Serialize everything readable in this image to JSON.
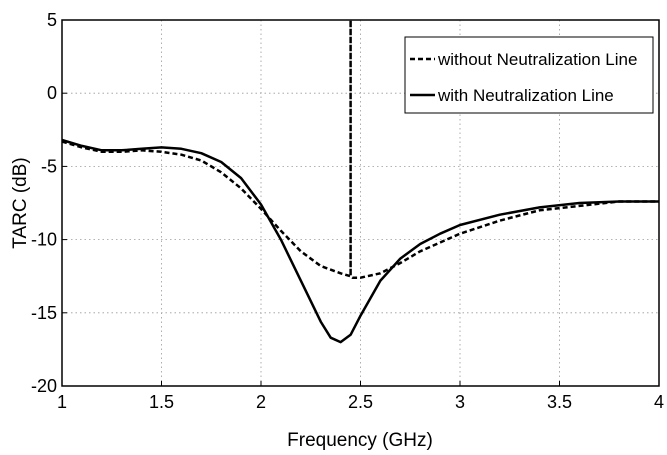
{
  "chart_data": {
    "type": "line",
    "title": "",
    "xlabel": "Frequency (GHz)",
    "ylabel": "TARC (dB)",
    "xlim": [
      1,
      4
    ],
    "ylim": [
      -20,
      5
    ],
    "xticks": [
      1,
      1.5,
      2,
      2.5,
      3,
      3.5,
      4
    ],
    "xtick_labels": [
      "1",
      "1.5",
      "2",
      "2.5",
      "3",
      "3.5",
      "4"
    ],
    "yticks": [
      -20,
      -15,
      -10,
      -5,
      0,
      5
    ],
    "ytick_labels": [
      "-20",
      "-15",
      "-10",
      "-5",
      "0",
      "5"
    ],
    "grid": true,
    "legend_position": "top-right",
    "series": [
      {
        "name": "without Neutralization Line",
        "style": "dashed",
        "color": "#000000",
        "x": [
          1.0,
          1.1,
          1.2,
          1.3,
          1.4,
          1.5,
          1.6,
          1.7,
          1.8,
          1.9,
          2.0,
          2.1,
          2.2,
          2.3,
          2.4,
          2.45,
          2.45,
          2.45,
          2.46,
          2.5,
          2.6,
          2.7,
          2.8,
          2.9,
          3.0,
          3.2,
          3.4,
          3.6,
          3.8,
          4.0
        ],
        "y": [
          -3.3,
          -3.7,
          -4.0,
          -4.0,
          -3.9,
          -4.0,
          -4.2,
          -4.6,
          -5.4,
          -6.5,
          -7.9,
          -9.4,
          -10.8,
          -11.8,
          -12.3,
          -12.5,
          5,
          -12.5,
          -12.6,
          -12.6,
          -12.3,
          -11.6,
          -10.8,
          -10.2,
          -9.6,
          -8.7,
          -8.0,
          -7.7,
          -7.4,
          -7.4
        ]
      },
      {
        "name": "with Neutralization Line",
        "style": "solid",
        "color": "#000000",
        "x": [
          1.0,
          1.1,
          1.2,
          1.3,
          1.4,
          1.5,
          1.6,
          1.7,
          1.8,
          1.9,
          2.0,
          2.1,
          2.2,
          2.3,
          2.35,
          2.4,
          2.45,
          2.5,
          2.6,
          2.7,
          2.8,
          2.9,
          3.0,
          3.2,
          3.4,
          3.6,
          3.8,
          4.0
        ],
        "y": [
          -3.2,
          -3.6,
          -3.9,
          -3.9,
          -3.8,
          -3.7,
          -3.8,
          -4.1,
          -4.7,
          -5.8,
          -7.6,
          -10.0,
          -12.8,
          -15.6,
          -16.7,
          -17.0,
          -16.5,
          -15.2,
          -12.8,
          -11.3,
          -10.3,
          -9.6,
          -9.0,
          -8.3,
          -7.8,
          -7.5,
          -7.4,
          -7.4
        ]
      }
    ]
  }
}
